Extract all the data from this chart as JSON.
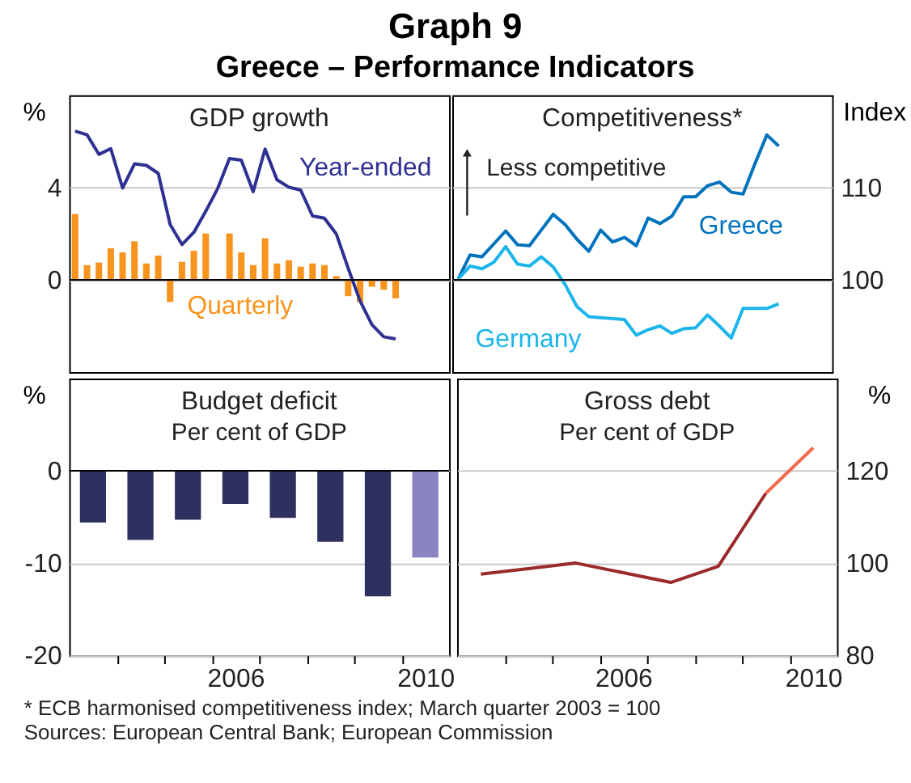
{
  "chart_data": [
    {
      "type": "other",
      "title": "Graph 9",
      "subtitle": "Greece – Performance Indicators",
      "annotations": [
        "*   ECB harmonised competitiveness index; March quarter 2003 = 100",
        "Sources: European Central Bank; European Commission"
      ]
    },
    {
      "type": "bar",
      "title": "GDP growth",
      "ylabel": "%",
      "xlim": [
        2003,
        2011
      ],
      "ylim": [
        -4,
        8
      ],
      "yticks": [
        0,
        4
      ],
      "grid": "y",
      "tick_labels": "y",
      "x": [
        2003.125,
        2003.375,
        2003.625,
        2003.875,
        2004.125,
        2004.375,
        2004.625,
        2004.875,
        2005.125,
        2005.375,
        2005.625,
        2005.875,
        2006.125,
        2006.375,
        2006.625,
        2006.875,
        2007.125,
        2007.375,
        2007.625,
        2007.875,
        2008.125,
        2008.375,
        2008.625,
        2008.875,
        2009.125,
        2009.375,
        2009.625,
        2009.875
      ],
      "series": [
        {
          "name": "Quarterly",
          "type": "bar",
          "color": "#f7941d",
          "values": [
            2.86,
            0.64,
            0.75,
            1.37,
            1.19,
            1.67,
            0.71,
            1.05,
            -0.96,
            0.78,
            1.26,
            2.01,
            0,
            2.01,
            1.19,
            0.64,
            1.8,
            0.71,
            0.85,
            0.57,
            0.71,
            0.64,
            0.16,
            -0.71,
            -0.96,
            -0.3,
            -0.43,
            -0.8
          ]
        },
        {
          "name": "Year-ended",
          "type": "line",
          "color": "#2e3192",
          "values": [
            6.45,
            6.29,
            5.44,
            5.69,
            3.98,
            5.03,
            4.96,
            4.62,
            2.4,
            1.53,
            2.06,
            2.97,
            3.95,
            5.26,
            5.19,
            3.82,
            5.67,
            4.34,
            4.02,
            3.89,
            2.77,
            2.67,
            1.99,
            0.5,
            -0.91,
            -1.94,
            -2.47,
            -2.56
          ]
        }
      ]
    },
    {
      "type": "line",
      "title": "Competitiveness*",
      "ylabel": "Index",
      "xlim": [
        2003,
        2011
      ],
      "ylim": [
        90,
        120
      ],
      "yticks": [
        100,
        110
      ],
      "grid": "y",
      "tick_labels": "y",
      "annotations": [
        "Less competitive"
      ],
      "ref_lines": [
        {
          "axis": "y",
          "value": 100,
          "color": "#000000"
        }
      ],
      "x": [
        2003.125,
        2003.375,
        2003.625,
        2003.875,
        2004.125,
        2004.375,
        2004.625,
        2004.875,
        2005.125,
        2005.375,
        2005.625,
        2005.875,
        2006.125,
        2006.375,
        2006.625,
        2006.875,
        2007.125,
        2007.375,
        2007.625,
        2007.875,
        2008.125,
        2008.375,
        2008.625,
        2008.875,
        2009.125,
        2009.375,
        2009.625,
        2009.875
      ],
      "series": [
        {
          "name": "Greece",
          "color": "#0072bc",
          "values": [
            100.1,
            102.7,
            102.5,
            103.9,
            105.3,
            103.8,
            103.7,
            105.4,
            107.1,
            106.0,
            104.4,
            103.1,
            105.4,
            104.1,
            104.6,
            103.7,
            106.7,
            106.1,
            106.9,
            109.0,
            109.0,
            110.2,
            110.6,
            109.5,
            109.3,
            112.6,
            115.7,
            114.5
          ]
        },
        {
          "name": "Germany",
          "color": "#1cb5ea",
          "values": [
            100.1,
            101.5,
            101.2,
            101.9,
            103.6,
            101.7,
            101.5,
            102.5,
            101.4,
            99.5,
            97.1,
            96.0,
            95.9,
            95.8,
            95.7,
            94.0,
            94.6,
            95.0,
            94.2,
            94.7,
            94.8,
            96.2,
            95.0,
            93.7,
            96.9,
            96.9,
            96.9,
            97.4
          ]
        }
      ]
    },
    {
      "type": "bar",
      "title": "Budget deficit",
      "subtitle": "Per cent of GDP",
      "ylabel": "%",
      "xlim": [
        2003,
        2011
      ],
      "ylim": [
        -20,
        10
      ],
      "yticks": [
        -20,
        -10,
        0
      ],
      "grid": "y",
      "xticks": [
        {
          "value": 2004,
          "label": null
        },
        {
          "value": 2005,
          "label": null
        },
        {
          "value": 2006,
          "label": null
        },
        {
          "value": 2007,
          "label": null
        },
        {
          "value": 2008,
          "label": null
        },
        {
          "value": 2009,
          "label": null
        },
        {
          "value": 2010,
          "label": null
        },
        {
          "value": 2006.5,
          "label": "2006"
        },
        {
          "value": 2010.5,
          "label": "2010"
        }
      ],
      "x": [
        2003.5,
        2004.5,
        2005.5,
        2006.5,
        2007.5,
        2008.5,
        2009.5,
        2010.5
      ],
      "series": [
        {
          "colors": [
            "#2e3060",
            "#2e3060",
            "#2e3060",
            "#2e3060",
            "#2e3060",
            "#2e3060",
            "#2e3060",
            "#8a84c2"
          ],
          "values": [
            -5.6,
            -7.5,
            -5.3,
            -3.6,
            -5.1,
            -7.7,
            -13.6,
            -9.4
          ]
        }
      ]
    },
    {
      "type": "line",
      "title": "Gross debt",
      "subtitle": "Per cent of GDP",
      "ylabel": "%",
      "xlim": [
        2003,
        2011
      ],
      "ylim": [
        80,
        140
      ],
      "yticks": [
        80,
        100,
        120
      ],
      "grid": "y",
      "xticks": [
        {
          "value": 2004,
          "label": null
        },
        {
          "value": 2005,
          "label": null
        },
        {
          "value": 2006,
          "label": null
        },
        {
          "value": 2007,
          "label": null
        },
        {
          "value": 2008,
          "label": null
        },
        {
          "value": 2009,
          "label": null
        },
        {
          "value": 2010,
          "label": null
        },
        {
          "value": 2006.5,
          "label": "2006"
        },
        {
          "value": 2010.5,
          "label": "2010"
        }
      ],
      "series": [
        {
          "color": "#9b2b2b",
          "x": [
            2003.5,
            2004.5,
            2005.5,
            2006.5,
            2007.5,
            2008.5,
            2009.5
          ],
          "values": [
            97.6,
            98.8,
            100.0,
            97.9,
            95.8,
            99.3,
            115.1
          ]
        },
        {
          "color": "#f26b4f",
          "x": [
            2009.5,
            2010.5
          ],
          "values": [
            115.1,
            125.0
          ]
        }
      ]
    }
  ]
}
